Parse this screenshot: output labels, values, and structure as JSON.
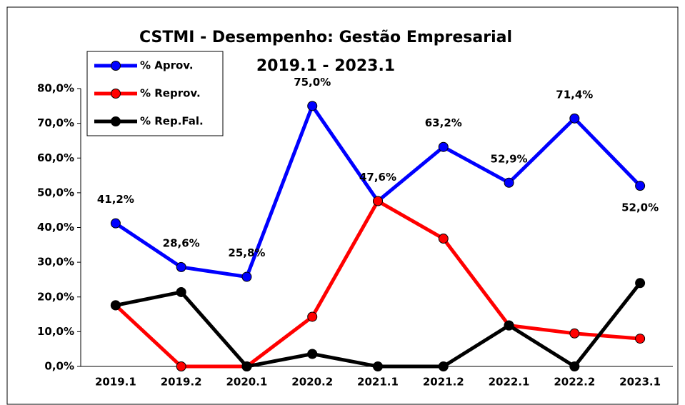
{
  "chart_data": {
    "type": "line",
    "title": "CSTMI - Desempenho: Gestão Empresarial",
    "subtitle": "2019.1 - 2023.1",
    "categories": [
      "2019.1",
      "2019.2",
      "2020.1",
      "2020.2",
      "2021.1",
      "2021.2",
      "2022.1",
      "2022.2",
      "2023.1"
    ],
    "series": [
      {
        "name": "% Aprov.",
        "color": "#0000ff",
        "values": [
          41.2,
          28.6,
          25.8,
          75.0,
          47.6,
          63.2,
          52.9,
          71.4,
          52.0
        ],
        "value_labels": [
          "41,2%",
          "28,6%",
          "25,8%",
          "75,0%",
          "47,6%",
          "63,2%",
          "52,9%",
          "71,4%",
          "52,0%"
        ]
      },
      {
        "name": "% Reprov.",
        "color": "#ff0000",
        "values": [
          17.6,
          0,
          0,
          14.3,
          47.6,
          36.8,
          11.8,
          9.5,
          8.0
        ]
      },
      {
        "name": "% Rep.Fal.",
        "color": "#000000",
        "values": [
          17.6,
          21.4,
          0,
          3.6,
          0,
          0,
          11.8,
          0,
          24.0
        ]
      }
    ],
    "ylim": [
      0,
      80
    ],
    "yticks": [
      {
        "value": 0,
        "label": "0,0%"
      },
      {
        "value": 10,
        "label": "10,0%"
      },
      {
        "value": 20,
        "label": "20,0%"
      },
      {
        "value": 30,
        "label": "30,0%"
      },
      {
        "value": 40,
        "label": "40,0%"
      },
      {
        "value": 50,
        "label": "50,0%"
      },
      {
        "value": 60,
        "label": "60,0%"
      },
      {
        "value": 70,
        "label": "70,0%"
      },
      {
        "value": 80,
        "label": "80,0%"
      }
    ],
    "legend": "top-left"
  }
}
